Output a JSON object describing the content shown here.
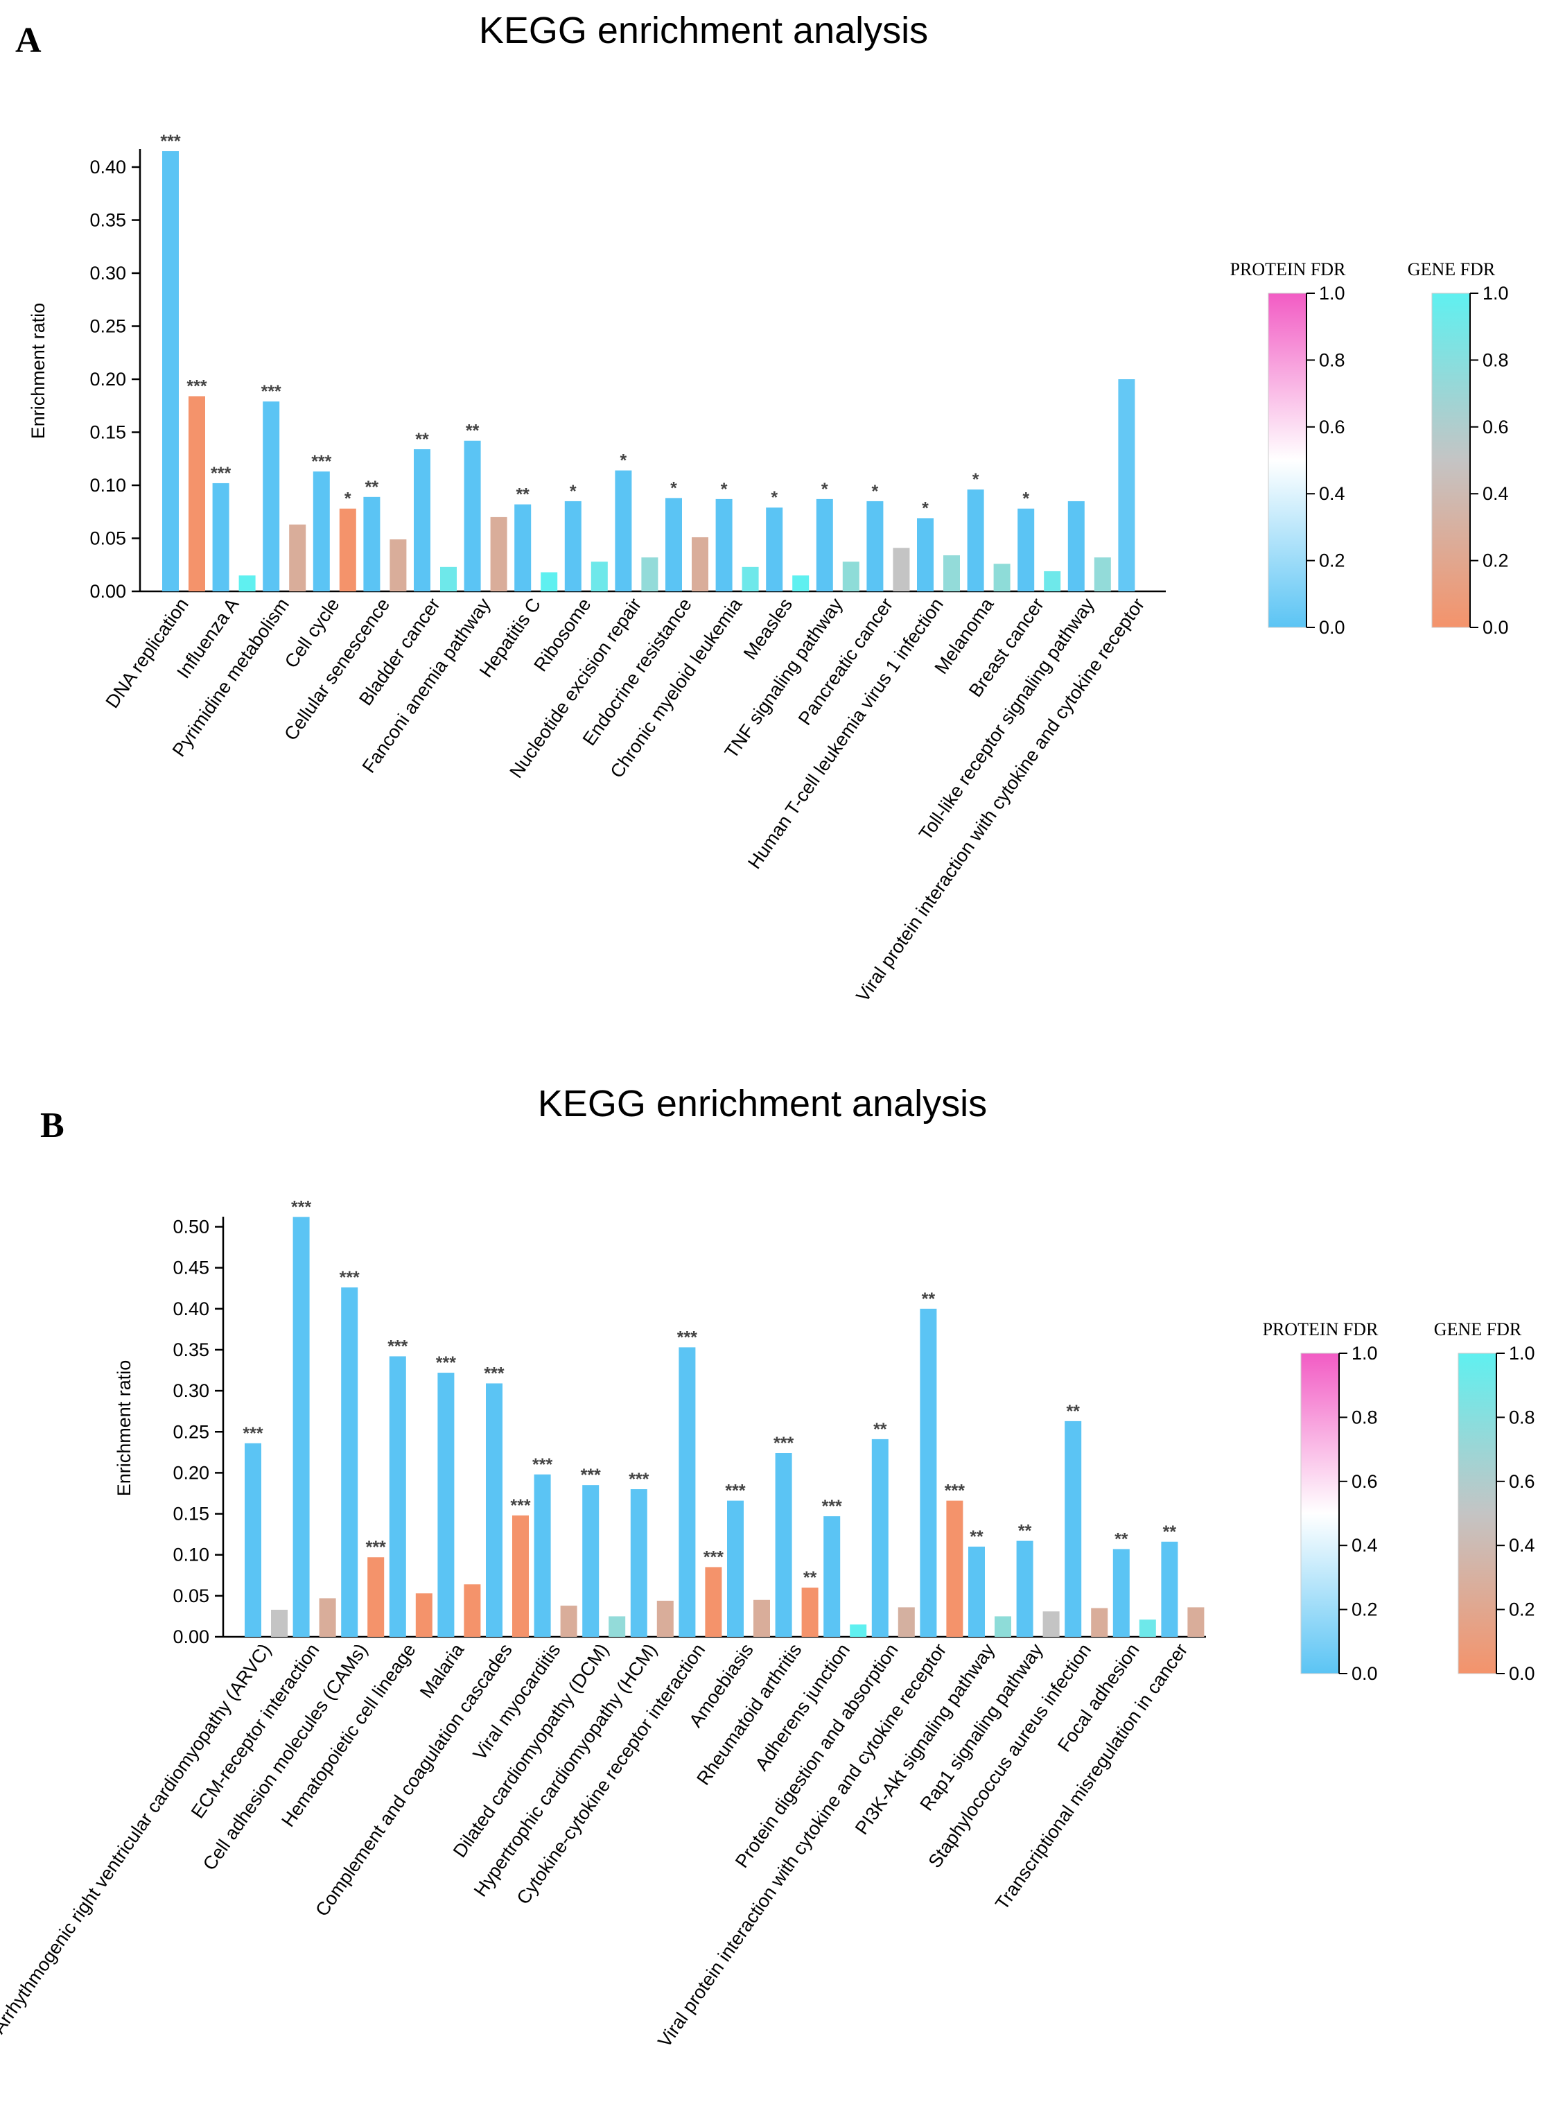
{
  "chart_data": [
    {
      "panel": "A",
      "type": "bar",
      "title": "KEGG enrichment analysis",
      "ylabel": "Enrichment ratio",
      "xlabel": "",
      "ylim": [
        0,
        0.42
      ],
      "yticks": [
        0.0,
        0.05,
        0.1,
        0.15,
        0.2,
        0.25,
        0.3,
        0.35,
        0.4
      ],
      "ytick_labels": [
        "0.00",
        "0.05",
        "0.10",
        "0.15",
        "0.20",
        "0.25",
        "0.30",
        "0.35",
        "0.40"
      ],
      "categories": [
        "DNA replication",
        "Influenza A",
        "Pyrimidine metabolism",
        "Cell cycle",
        "Cellular senescence",
        "Bladder cancer",
        "Fanconi anemia pathway",
        "Hepatitis C",
        "Ribosome",
        "Nucleotide excision repair",
        "Endocrine resistance",
        "Chronic myeloid leukemia",
        "Measles",
        "TNF signaling pathway",
        "Pancreatic cancer",
        "Human T-cell leukemia virus 1 infection",
        "Melanoma",
        "Breast cancer",
        "Toll-like receptor signaling pathway",
        "Viral protein interaction with cytokine and cytokine receptor"
      ],
      "series": [
        {
          "name": "Protein",
          "values": [
            0.415,
            0.102,
            0.179,
            0.113,
            0.089,
            0.134,
            0.142,
            0.082,
            0.085,
            0.114,
            0.088,
            0.087,
            0.079,
            0.087,
            0.085,
            0.069,
            0.096,
            0.078,
            0.085,
            0.2
          ],
          "colors": [
            "#5bc4f4",
            "#5bc4f4",
            "#5bc4f4",
            "#5bc4f4",
            "#5bc4f4",
            "#5bc4f4",
            "#5bc4f4",
            "#5bc4f4",
            "#5bc4f4",
            "#5bc4f4",
            "#5bc4f4",
            "#5bc4f4",
            "#5bc4f4",
            "#5bc4f4",
            "#5bc4f4",
            "#5bc4f4",
            "#5bc4f4",
            "#5bc4f4",
            "#5bc4f4",
            "#64c8f5"
          ],
          "labels": [
            "***",
            "***",
            "***",
            "***",
            "**",
            "**",
            "**",
            "**",
            "*",
            "*",
            "*",
            "*",
            "*",
            "*",
            "*",
            "*",
            "*",
            "*",
            "",
            ""
          ]
        },
        {
          "name": "Gene",
          "values": [
            0.184,
            0.015,
            0.063,
            0.078,
            0.049,
            0.023,
            0.07,
            0.018,
            0.028,
            0.032,
            0.051,
            0.023,
            0.015,
            0.028,
            0.041,
            0.034,
            0.026,
            0.019,
            0.032,
            null
          ],
          "colors": [
            "#f4936b",
            "#5ff0f0",
            "#d9ad9a",
            "#f4936b",
            "#d9ad9a",
            "#6ee8ea",
            "#d9ad9a",
            "#5ff0f0",
            "#6ee8ea",
            "#93dbd9",
            "#d9ad9a",
            "#6ee8ea",
            "#5ff0f0",
            "#8edcd8",
            "#c4c4c4",
            "#93dbd9",
            "#8edcd8",
            "#6ee8ea",
            "#93dbd9",
            "#ffffff"
          ],
          "labels": [
            "***",
            "",
            "",
            "*",
            "",
            "",
            "",
            "",
            "",
            "",
            "",
            "",
            "",
            "",
            "",
            "",
            "",
            "",
            "",
            ""
          ]
        }
      ],
      "legends": [
        {
          "title": "PROTEIN FDR",
          "ticks": [
            "0.0",
            "0.2",
            "0.4",
            "0.6",
            "0.8",
            "1.0"
          ],
          "colors": [
            "#5bc4f4",
            "#ffffff",
            "#f25cc4"
          ]
        },
        {
          "title": "GENE FDR",
          "ticks": [
            "0.0",
            "0.2",
            "0.4",
            "0.6",
            "0.8",
            "1.0"
          ],
          "colors": [
            "#f4936b",
            "#c4c4c4",
            "#5ff0f0"
          ]
        }
      ]
    },
    {
      "panel": "B",
      "type": "bar",
      "title": "KEGG enrichment analysis",
      "ylabel": "Enrichment ratio",
      "xlabel": "",
      "ylim": [
        0,
        0.51
      ],
      "yticks": [
        0.0,
        0.05,
        0.1,
        0.15,
        0.2,
        0.25,
        0.3,
        0.35,
        0.4,
        0.45,
        0.5
      ],
      "ytick_labels": [
        "0.00",
        "0.05",
        "0.10",
        "0.15",
        "0.20",
        "0.25",
        "0.30",
        "0.35",
        "0.40",
        "0.45",
        "0.50"
      ],
      "categories": [
        "Arrhythmogenic right ventricular cardiomyopathy (ARVC)",
        "ECM-receptor interaction",
        "Cell adhesion molecules (CAMs)",
        "Hematopoietic cell lineage",
        "Malaria",
        "Complement and coagulation cascades",
        "Viral myocarditis",
        "Dilated cardiomyopathy (DCM)",
        "Hypertrophic cardiomyopathy (HCM)",
        "Cytokine-cytokine receptor interaction",
        "Amoebiasis",
        "Rheumatoid arthritis",
        "Adherens junction",
        "Protein digestion and absorption",
        "Viral protein interaction with cytokine and cytokine receptor",
        "PI3K-Akt signaling pathway",
        "Rap1 signaling pathway",
        "Staphylococcus aureus infection",
        "Focal adhesion",
        "Transcriptional misregulation in cancer"
      ],
      "series": [
        {
          "name": "Protein",
          "values": [
            0.236,
            0.512,
            0.426,
            0.342,
            0.322,
            0.309,
            0.198,
            0.185,
            0.18,
            0.353,
            0.166,
            0.224,
            0.147,
            0.241,
            0.4,
            0.11,
            0.117,
            0.263,
            0.107,
            0.116
          ],
          "colors": [
            "#5bc4f4",
            "#5bc4f4",
            "#5bc4f4",
            "#5bc4f4",
            "#5bc4f4",
            "#5bc4f4",
            "#5bc4f4",
            "#5bc4f4",
            "#5bc4f4",
            "#5bc4f4",
            "#5bc4f4",
            "#5bc4f4",
            "#5bc4f4",
            "#5bc4f4",
            "#5bc4f4",
            "#5bc4f4",
            "#5bc4f4",
            "#5bc4f4",
            "#5bc4f4",
            "#5bc4f4"
          ],
          "labels": [
            "***",
            "***",
            "***",
            "***",
            "***",
            "***",
            "***",
            "***",
            "***",
            "***",
            "***",
            "***",
            "***",
            "**",
            "**",
            "**",
            "**",
            "**",
            "**",
            "**"
          ]
        },
        {
          "name": "Gene",
          "values": [
            0.033,
            0.047,
            0.097,
            0.053,
            0.064,
            0.148,
            0.038,
            0.025,
            0.044,
            0.085,
            0.045,
            0.06,
            0.015,
            0.036,
            0.166,
            0.025,
            0.031,
            0.035,
            0.021,
            0.036
          ],
          "colors": [
            "#c4c4c4",
            "#d9ad9a",
            "#f4936b",
            "#f4936b",
            "#f4936b",
            "#f4936b",
            "#d9ad9a",
            "#93dbd9",
            "#d9ad9a",
            "#f4936b",
            "#d9ad9a",
            "#f4936b",
            "#5ff0f0",
            "#d4b0a0",
            "#f4936b",
            "#8edcd8",
            "#c4c4c4",
            "#d9ad9a",
            "#6ee8ea",
            "#d9ad9a"
          ],
          "labels": [
            "",
            "",
            "***",
            "",
            "",
            "***",
            "",
            "",
            "",
            "***",
            "",
            "**",
            "",
            "",
            "***",
            "",
            "",
            "",
            "",
            ""
          ]
        }
      ],
      "legends": [
        {
          "title": "PROTEIN FDR",
          "ticks": [
            "0.0",
            "0.2",
            "0.4",
            "0.6",
            "0.8",
            "1.0"
          ],
          "colors": [
            "#5bc4f4",
            "#ffffff",
            "#f25cc4"
          ]
        },
        {
          "title": "GENE FDR",
          "ticks": [
            "0.0",
            "0.2",
            "0.4",
            "0.6",
            "0.8",
            "1.0"
          ],
          "colors": [
            "#f4936b",
            "#c4c4c4",
            "#5ff0f0"
          ]
        }
      ]
    }
  ]
}
